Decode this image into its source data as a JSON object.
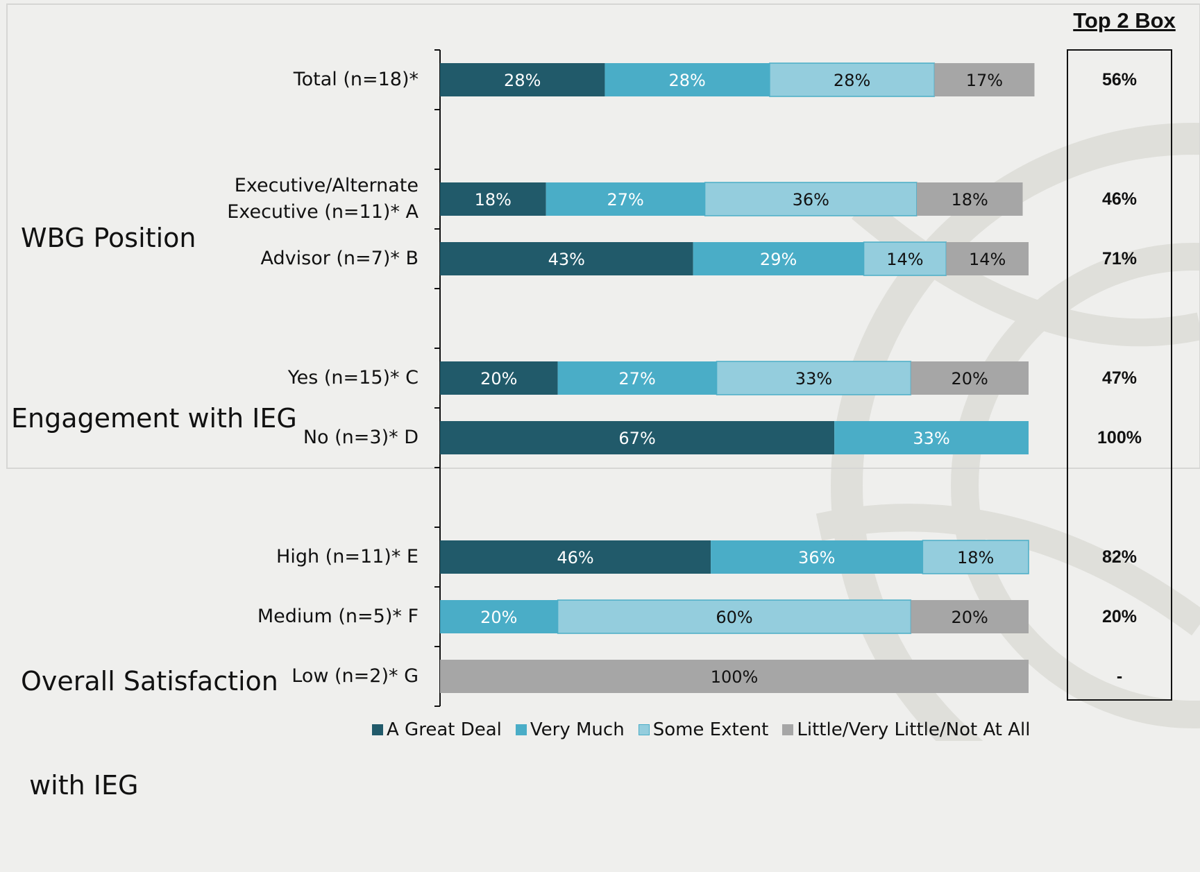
{
  "colors": {
    "great_deal": "#215a6a",
    "very_much": "#4aadc7",
    "some_extent": "#94cddd",
    "little": "#a6a6a6",
    "background": "#efefed"
  },
  "groups": [
    {
      "label_lines": [
        "WBG Position"
      ]
    },
    {
      "label_lines": [
        "Engagement with IEG"
      ]
    },
    {
      "label_lines": [
        "Overall Satisfaction",
        " with IEG"
      ]
    }
  ],
  "top2": {
    "title": "Top 2 Box",
    "values": [
      "56%",
      "46%",
      "71%",
      "47%",
      "100%",
      "82%",
      "20%",
      "-"
    ]
  },
  "chart_data": {
    "type": "bar",
    "orientation": "horizontal",
    "stacked": true,
    "categories": [
      [
        "Total (n=18)*"
      ],
      [
        "Executive/Alternate",
        "Executive (n=11)* A"
      ],
      [
        "Advisor (n=7)* B"
      ],
      [
        "Yes (n=15)* C"
      ],
      [
        "No (n=3)* D"
      ],
      [
        "High (n=11)* E"
      ],
      [
        "Medium (n=5)* F"
      ],
      [
        "Low (n=2)* G"
      ]
    ],
    "series": [
      {
        "name": "A Great Deal",
        "values": [
          28,
          18,
          43,
          20,
          67,
          46,
          0,
          0
        ],
        "labels": [
          "28%",
          "18%",
          "43%",
          "20%",
          "67%",
          "46%",
          "",
          ""
        ]
      },
      {
        "name": "Very Much",
        "values": [
          28,
          27,
          29,
          27,
          33,
          36,
          20,
          0
        ],
        "labels": [
          "28%",
          "27%",
          "29%",
          "27%",
          "33%",
          "36%",
          "20%",
          ""
        ]
      },
      {
        "name": "Some Extent",
        "values": [
          28,
          36,
          14,
          33,
          0,
          18,
          60,
          0
        ],
        "labels": [
          "28%",
          "36%",
          "14%",
          "33%",
          "",
          "18%",
          "60%",
          ""
        ]
      },
      {
        "name": "Little/Very Little/Not At All",
        "values": [
          17,
          18,
          14,
          20,
          0,
          0,
          20,
          100
        ],
        "labels": [
          "17%",
          "18%",
          "14%",
          "20%",
          "",
          "",
          "20%",
          "100%"
        ]
      }
    ],
    "xlim": [
      0,
      100
    ],
    "grid": false,
    "legend_position": "bottom"
  }
}
